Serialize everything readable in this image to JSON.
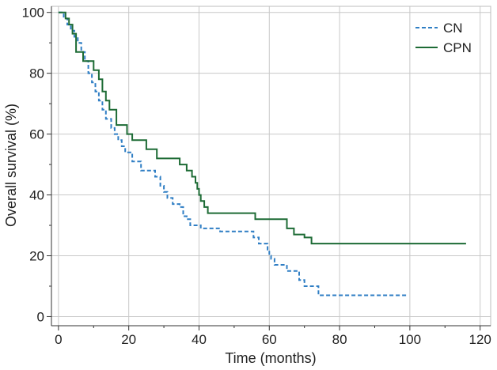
{
  "chart_data": {
    "type": "line",
    "step": true,
    "title": "",
    "xlabel": "Time (months)",
    "ylabel": "Overall survival (%)",
    "xlim": [
      -2,
      123
    ],
    "ylim": [
      -3,
      102
    ],
    "xticks": [
      0,
      20,
      40,
      60,
      80,
      100,
      120
    ],
    "yticks": [
      0,
      20,
      40,
      60,
      80,
      100
    ],
    "grid": true,
    "legend_position": "top-right",
    "series": [
      {
        "name": "CN",
        "color": "#2f7ec4",
        "dash": "dashed",
        "x": [
          0,
          1.5,
          2.5,
          3.5,
          4.5,
          5.5,
          6.5,
          7.5,
          8.5,
          9.5,
          10.5,
          11.5,
          12.5,
          13.5,
          15,
          16,
          17,
          18,
          19,
          21,
          23.5,
          27.5,
          29,
          30,
          31,
          32.5,
          34.5,
          35.5,
          36.5,
          37.5,
          40.5,
          46,
          55.5,
          57,
          59.5,
          60,
          60.5,
          61.5,
          65,
          68.5,
          70,
          74,
          99
        ],
        "y": [
          100,
          98,
          96,
          94,
          92,
          90,
          87,
          84,
          80,
          77,
          74,
          71,
          68,
          65,
          62,
          60,
          58,
          56,
          54,
          51,
          48,
          46,
          43,
          41,
          39,
          37,
          36,
          33,
          32,
          30,
          29,
          28,
          26,
          24,
          22,
          20,
          19,
          17,
          15,
          12,
          10,
          7,
          7
        ]
      },
      {
        "name": "CPN",
        "color": "#1d6b35",
        "dash": "solid",
        "x": [
          0,
          2,
          3,
          4,
          5,
          7,
          10,
          11.5,
          12.5,
          13.5,
          14.5,
          16.5,
          19.5,
          21,
          25,
          28,
          34.5,
          36.5,
          38,
          39,
          39.5,
          40,
          40.5,
          41.5,
          42.5,
          56,
          65,
          67,
          70,
          72,
          116
        ],
        "y": [
          100,
          98,
          96,
          93,
          87,
          84,
          81,
          78,
          74,
          71,
          68,
          63,
          60,
          58,
          55,
          52,
          50,
          48,
          46,
          44,
          42,
          40,
          38,
          36,
          34,
          32,
          29,
          27,
          26,
          24,
          24
        ]
      }
    ]
  }
}
